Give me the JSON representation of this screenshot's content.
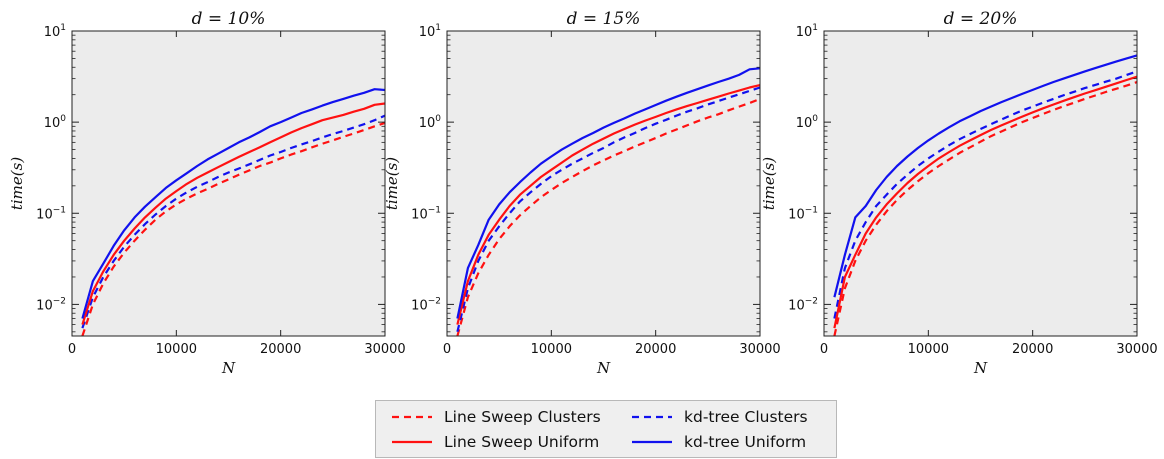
{
  "colors": {
    "red": "#ff1111",
    "blue": "#1111ee",
    "plot_bg": "#ececec"
  },
  "legend": {
    "items": [
      {
        "label": "Line Sweep Clusters",
        "color": "#ff1111",
        "style": "dashed"
      },
      {
        "label": "kd-tree Clusters",
        "color": "#1111ee",
        "style": "dashed"
      },
      {
        "label": "Line Sweep Uniform",
        "color": "#ff1111",
        "style": "solid"
      },
      {
        "label": "kd-tree Uniform",
        "color": "#1111ee",
        "style": "solid"
      }
    ]
  },
  "chart_data": [
    {
      "type": "line",
      "title": "d = 10%",
      "xlabel": "N",
      "ylabel": "time(s)",
      "xlim": [
        0,
        30000
      ],
      "ylim": [
        0.0045,
        10
      ],
      "yscale": "log",
      "grid": false,
      "xticks": [
        "0",
        "10000",
        "20000",
        "30000"
      ],
      "x": [
        1000,
        2000,
        3000,
        4000,
        5000,
        6000,
        7000,
        8000,
        9000,
        10000,
        11000,
        12000,
        13000,
        14000,
        15000,
        16000,
        17000,
        18000,
        19000,
        20000,
        21000,
        22000,
        23000,
        24000,
        25000,
        26000,
        27000,
        28000,
        29000,
        30000
      ],
      "series": [
        {
          "name": "Line Sweep Clusters",
          "values": [
            0.0045,
            0.01,
            0.017,
            0.026,
            0.037,
            0.05,
            0.066,
            0.085,
            0.105,
            0.125,
            0.145,
            0.165,
            0.185,
            0.21,
            0.235,
            0.265,
            0.295,
            0.33,
            0.36,
            0.4,
            0.44,
            0.48,
            0.53,
            0.58,
            0.63,
            0.69,
            0.75,
            0.82,
            0.9,
            0.98
          ]
        },
        {
          "name": "kd-tree Clusters",
          "values": [
            0.0055,
            0.012,
            0.02,
            0.03,
            0.043,
            0.058,
            0.076,
            0.097,
            0.12,
            0.145,
            0.17,
            0.195,
            0.22,
            0.25,
            0.28,
            0.31,
            0.345,
            0.385,
            0.43,
            0.47,
            0.52,
            0.57,
            0.62,
            0.68,
            0.74,
            0.8,
            0.87,
            0.95,
            1.05,
            1.18
          ]
        },
        {
          "name": "Line Sweep Uniform",
          "values": [
            0.006,
            0.014,
            0.023,
            0.035,
            0.05,
            0.068,
            0.09,
            0.115,
            0.145,
            0.175,
            0.21,
            0.245,
            0.28,
            0.32,
            0.365,
            0.415,
            0.47,
            0.53,
            0.6,
            0.68,
            0.77,
            0.86,
            0.95,
            1.05,
            1.12,
            1.2,
            1.3,
            1.4,
            1.55,
            1.6
          ]
        },
        {
          "name": "kd-tree Uniform",
          "values": [
            0.007,
            0.018,
            0.028,
            0.044,
            0.065,
            0.09,
            0.118,
            0.15,
            0.19,
            0.23,
            0.275,
            0.33,
            0.39,
            0.45,
            0.52,
            0.6,
            0.68,
            0.78,
            0.9,
            1.0,
            1.12,
            1.26,
            1.38,
            1.52,
            1.66,
            1.8,
            1.95,
            2.1,
            2.3,
            2.25
          ]
        }
      ]
    },
    {
      "type": "line",
      "title": "d = 15%",
      "xlabel": "N",
      "ylabel": "time(s)",
      "xlim": [
        0,
        30000
      ],
      "ylim": [
        0.0045,
        10
      ],
      "yscale": "log",
      "grid": false,
      "xticks": [
        "0",
        "10000",
        "20000",
        "30000"
      ],
      "x": [
        1000,
        2000,
        3000,
        4000,
        5000,
        6000,
        7000,
        8000,
        9000,
        10000,
        11000,
        12000,
        13000,
        14000,
        15000,
        16000,
        17000,
        18000,
        19000,
        20000,
        21000,
        22000,
        23000,
        24000,
        25000,
        26000,
        27000,
        28000,
        29000,
        30000
      ],
      "series": [
        {
          "name": "Line Sweep Clusters",
          "values": [
            0.0045,
            0.012,
            0.022,
            0.035,
            0.052,
            0.072,
            0.095,
            0.12,
            0.15,
            0.18,
            0.215,
            0.25,
            0.29,
            0.335,
            0.38,
            0.43,
            0.48,
            0.54,
            0.6,
            0.67,
            0.75,
            0.83,
            0.92,
            1.02,
            1.12,
            1.22,
            1.35,
            1.48,
            1.62,
            1.8
          ]
        },
        {
          "name": "kd-tree Clusters",
          "values": [
            0.005,
            0.015,
            0.03,
            0.05,
            0.072,
            0.1,
            0.135,
            0.17,
            0.21,
            0.255,
            0.3,
            0.35,
            0.4,
            0.46,
            0.52,
            0.6,
            0.68,
            0.76,
            0.86,
            0.96,
            1.06,
            1.18,
            1.3,
            1.42,
            1.56,
            1.7,
            1.86,
            2.02,
            2.2,
            2.4
          ]
        },
        {
          "name": "Line Sweep Uniform",
          "values": [
            0.006,
            0.018,
            0.035,
            0.058,
            0.085,
            0.12,
            0.16,
            0.2,
            0.25,
            0.3,
            0.36,
            0.43,
            0.5,
            0.58,
            0.66,
            0.75,
            0.84,
            0.94,
            1.04,
            1.14,
            1.26,
            1.38,
            1.5,
            1.62,
            1.76,
            1.9,
            2.06,
            2.22,
            2.4,
            2.55
          ]
        },
        {
          "name": "kd-tree Uniform",
          "values": [
            0.007,
            0.025,
            0.045,
            0.085,
            0.125,
            0.17,
            0.22,
            0.28,
            0.35,
            0.42,
            0.5,
            0.58,
            0.67,
            0.76,
            0.87,
            0.98,
            1.1,
            1.24,
            1.38,
            1.54,
            1.72,
            1.9,
            2.1,
            2.3,
            2.52,
            2.76,
            3.0,
            3.3,
            3.8,
            3.9
          ]
        }
      ]
    },
    {
      "type": "line",
      "title": "d = 20%",
      "xlabel": "N",
      "ylabel": "time(s)",
      "xlim": [
        0,
        30000
      ],
      "ylim": [
        0.0045,
        10
      ],
      "yscale": "log",
      "grid": false,
      "xticks": [
        "0",
        "10000",
        "20000",
        "30000"
      ],
      "x": [
        1000,
        2000,
        3000,
        4000,
        5000,
        6000,
        7000,
        8000,
        9000,
        10000,
        11000,
        12000,
        13000,
        14000,
        15000,
        16000,
        17000,
        18000,
        19000,
        20000,
        21000,
        22000,
        23000,
        24000,
        25000,
        26000,
        27000,
        28000,
        29000,
        30000
      ],
      "series": [
        {
          "name": "Line Sweep Clusters",
          "values": [
            0.0045,
            0.015,
            0.03,
            0.05,
            0.075,
            0.105,
            0.14,
            0.18,
            0.225,
            0.275,
            0.33,
            0.39,
            0.46,
            0.53,
            0.61,
            0.7,
            0.79,
            0.89,
            1.0,
            1.11,
            1.23,
            1.36,
            1.5,
            1.64,
            1.8,
            1.96,
            2.14,
            2.32,
            2.52,
            2.75
          ]
        },
        {
          "name": "kd-tree Clusters",
          "values": [
            0.007,
            0.025,
            0.05,
            0.08,
            0.12,
            0.16,
            0.21,
            0.265,
            0.33,
            0.4,
            0.475,
            0.56,
            0.65,
            0.74,
            0.84,
            0.95,
            1.07,
            1.2,
            1.34,
            1.48,
            1.64,
            1.8,
            1.98,
            2.16,
            2.36,
            2.56,
            2.78,
            3.0,
            3.3,
            3.6
          ]
        },
        {
          "name": "Line Sweep Uniform",
          "values": [
            0.0055,
            0.02,
            0.035,
            0.06,
            0.09,
            0.125,
            0.165,
            0.215,
            0.27,
            0.33,
            0.4,
            0.47,
            0.55,
            0.63,
            0.72,
            0.82,
            0.92,
            1.03,
            1.15,
            1.28,
            1.42,
            1.56,
            1.72,
            1.88,
            2.06,
            2.24,
            2.44,
            2.66,
            2.9,
            3.15
          ]
        },
        {
          "name": "kd-tree Uniform",
          "values": [
            0.012,
            0.035,
            0.09,
            0.12,
            0.18,
            0.25,
            0.33,
            0.42,
            0.52,
            0.63,
            0.75,
            0.88,
            1.02,
            1.16,
            1.32,
            1.48,
            1.66,
            1.84,
            2.04,
            2.26,
            2.5,
            2.76,
            3.02,
            3.3,
            3.6,
            3.92,
            4.26,
            4.62,
            5.0,
            5.4
          ]
        }
      ]
    }
  ]
}
